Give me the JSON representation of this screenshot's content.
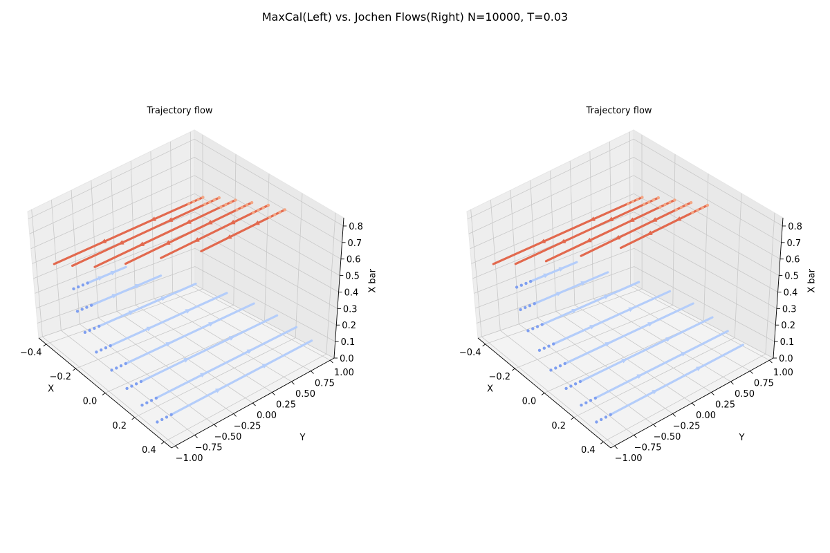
{
  "figure": {
    "suptitle": "MaxCal(Left) vs. Jochen Flows(Right)  N=10000, T=0.03"
  },
  "chart_data": [
    {
      "type": "3d-trajectory-flow",
      "title": "Trajectory flow",
      "xlabel": "X",
      "ylabel": "Y",
      "zlabel": "X bar",
      "xlim": [
        -0.45,
        0.45
      ],
      "ylim": [
        -1.05,
        1.05
      ],
      "zlim": [
        0,
        0.85
      ],
      "xticks": [
        "−0.4",
        "−0.2",
        "0.0",
        "0.2",
        "0.4"
      ],
      "yticks": [
        "−1.00",
        "−0.75",
        "−0.50",
        "−0.25",
        "0.00",
        "0.25",
        "0.50",
        "0.75",
        "1.00"
      ],
      "zticks": [
        "0.0",
        "0.1",
        "0.2",
        "0.3",
        "0.4",
        "0.5",
        "0.6",
        "0.7",
        "0.8"
      ],
      "grid": true,
      "series": [
        {
          "color": "#b4cdfa",
          "dot_color": "#7f9ff0",
          "trajectories": [
            {
              "x": -0.35,
              "z": 0.34,
              "y": [
                -0.55,
                -0.05
              ]
            },
            {
              "x": -0.25,
              "z": 0.3,
              "y": [
                -0.7,
                0.2
              ]
            },
            {
              "x": -0.15,
              "z": 0.26,
              "y": [
                -0.8,
                0.45
              ]
            },
            {
              "x": -0.05,
              "z": 0.22,
              "y": [
                -0.85,
                0.65
              ]
            },
            {
              "x": 0.05,
              "z": 0.18,
              "y": [
                -0.85,
                0.8
              ]
            },
            {
              "x": 0.15,
              "z": 0.14,
              "y": [
                -0.85,
                0.9
              ]
            },
            {
              "x": 0.25,
              "z": 0.11,
              "y": [
                -0.85,
                0.95
              ]
            },
            {
              "x": 0.35,
              "z": 0.08,
              "y": [
                -0.85,
                0.95
              ]
            }
          ]
        },
        {
          "color": "#e2694e",
          "dot_color": "#f4a785",
          "trajectories": [
            {
              "x": -0.35,
              "z": 0.55,
              "y": [
                -0.95,
                0.95
              ]
            },
            {
              "x": -0.25,
              "z": 0.6,
              "y": [
                -0.9,
                0.95
              ]
            },
            {
              "x": -0.15,
              "z": 0.64,
              "y": [
                -0.8,
                0.95
              ]
            },
            {
              "x": -0.05,
              "z": 0.68,
              "y": [
                -0.6,
                0.95
              ]
            },
            {
              "x": 0.05,
              "z": 0.72,
              "y": [
                -0.35,
                0.95
              ]
            },
            {
              "x": 0.15,
              "z": 0.75,
              "y": [
                -0.05,
                0.95
              ]
            }
          ]
        }
      ]
    },
    {
      "type": "3d-trajectory-flow",
      "title": "Trajectory flow",
      "xlabel": "X",
      "ylabel": "Y",
      "zlabel": "X bar",
      "xlim": [
        -0.45,
        0.45
      ],
      "ylim": [
        -1.05,
        1.05
      ],
      "zlim": [
        0,
        0.85
      ],
      "xticks": [
        "−0.4",
        "−0.2",
        "0.0",
        "0.2",
        "0.4"
      ],
      "yticks": [
        "−1.00",
        "−0.75",
        "−0.50",
        "−0.25",
        "0.00",
        "0.25",
        "0.50",
        "0.75",
        "1.00"
      ],
      "zticks": [
        "0.0",
        "0.1",
        "0.2",
        "0.3",
        "0.4",
        "0.5",
        "0.6",
        "0.7",
        "0.8"
      ],
      "grid": true,
      "series": [
        {
          "color": "#b4cdfa",
          "dot_color": "#7f9ff0",
          "trajectories": [
            {
              "x": -0.35,
              "z": 0.34,
              "y": [
                -0.5,
                0.1
              ]
            },
            {
              "x": -0.25,
              "z": 0.3,
              "y": [
                -0.65,
                0.3
              ]
            },
            {
              "x": -0.15,
              "z": 0.26,
              "y": [
                -0.75,
                0.5
              ]
            },
            {
              "x": -0.05,
              "z": 0.22,
              "y": [
                -0.8,
                0.7
              ]
            },
            {
              "x": 0.05,
              "z": 0.18,
              "y": [
                -0.85,
                0.8
              ]
            },
            {
              "x": 0.15,
              "z": 0.14,
              "y": [
                -0.85,
                0.85
              ]
            },
            {
              "x": 0.25,
              "z": 0.11,
              "y": [
                -0.85,
                0.85
              ]
            },
            {
              "x": 0.35,
              "z": 0.08,
              "y": [
                -0.85,
                0.85
              ]
            }
          ]
        },
        {
          "color": "#e2694e",
          "dot_color": "#f4a785",
          "trajectories": [
            {
              "x": -0.35,
              "z": 0.55,
              "y": [
                -0.95,
                0.95
              ]
            },
            {
              "x": -0.25,
              "z": 0.6,
              "y": [
                -0.85,
                0.95
              ]
            },
            {
              "x": -0.15,
              "z": 0.64,
              "y": [
                -0.65,
                0.95
              ]
            },
            {
              "x": -0.05,
              "z": 0.68,
              "y": [
                -0.4,
                0.95
              ]
            },
            {
              "x": 0.05,
              "z": 0.72,
              "y": [
                -0.1,
                0.95
              ]
            }
          ]
        }
      ]
    }
  ]
}
